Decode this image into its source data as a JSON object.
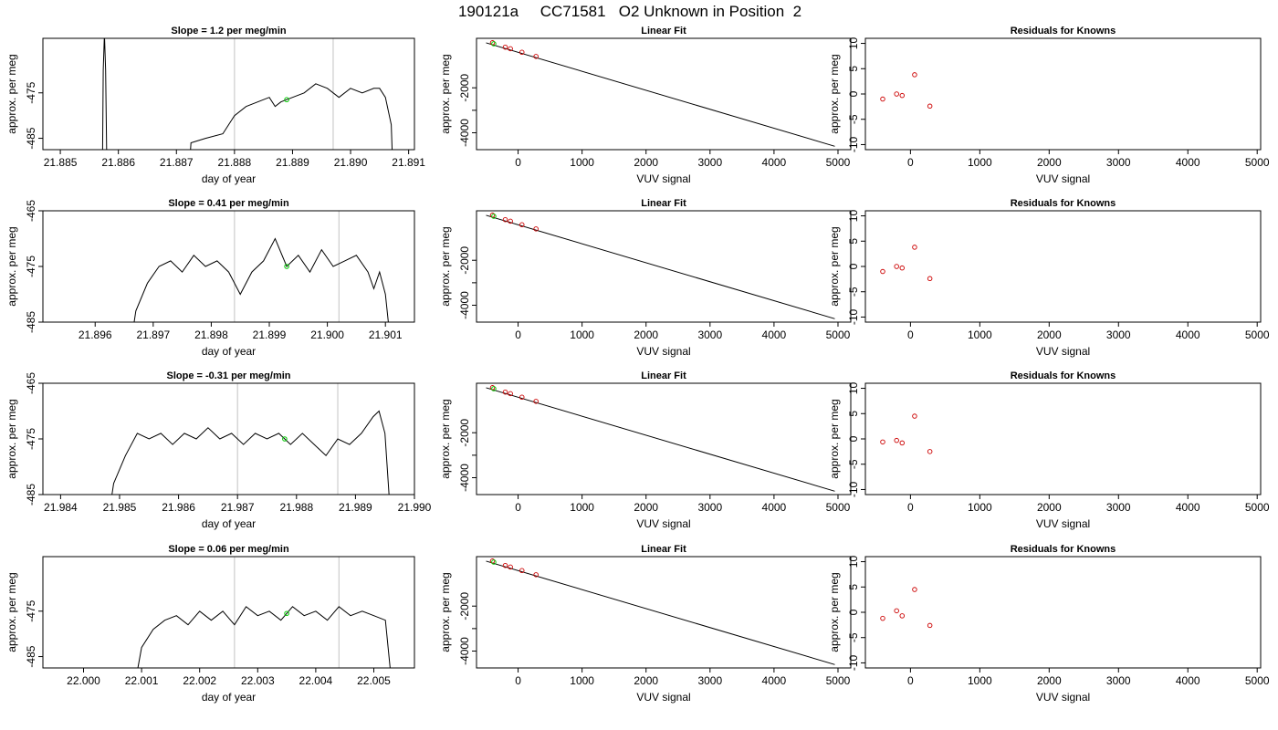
{
  "figure": {
    "title": "190121a     CC71581   O2 Unknown in Position  2"
  },
  "chart_data": [
    {
      "type": "line",
      "title": "Slope =  1.2  per meg/min",
      "xlabel": "day of year",
      "ylabel": "approx. per meg",
      "xlim": [
        21.8847,
        21.8911
      ],
      "ylim": [
        -487.5,
        -463
      ],
      "xticks": [
        21.885,
        21.886,
        21.887,
        21.888,
        21.889,
        21.89,
        21.891
      ],
      "xtick_labels": [
        "21.885",
        "21.886",
        "21.887",
        "21.888",
        "21.889",
        "21.890",
        "21.891"
      ],
      "yticks": [
        -485,
        -475
      ],
      "ytick_labels": [
        "-485",
        "-475"
      ],
      "vlines": [
        21.888,
        21.8897
      ],
      "marker": {
        "x": 21.8889,
        "y": -476.5,
        "color": "#00cc00"
      },
      "series": [
        {
          "color": "#000000",
          "points": [
            [
              21.88572,
              -500
            ],
            [
              21.88574,
              -470
            ],
            [
              21.88576,
              -462
            ],
            [
              21.88578,
              -470
            ],
            [
              21.88581,
              -500
            ],
            [
              21.88718,
              -500
            ],
            [
              21.88725,
              -486
            ],
            [
              21.8875,
              -485
            ],
            [
              21.8878,
              -484
            ],
            [
              21.8879,
              -482
            ],
            [
              21.888,
              -480
            ],
            [
              21.8882,
              -478
            ],
            [
              21.8884,
              -477
            ],
            [
              21.8886,
              -476
            ],
            [
              21.8887,
              -478
            ],
            [
              21.8888,
              -477
            ],
            [
              21.889,
              -476
            ],
            [
              21.8892,
              -475
            ],
            [
              21.8894,
              -473
            ],
            [
              21.8896,
              -474
            ],
            [
              21.8898,
              -476
            ],
            [
              21.89,
              -474
            ],
            [
              21.8902,
              -475
            ],
            [
              21.8904,
              -474
            ],
            [
              21.8905,
              -474
            ],
            [
              21.8906,
              -476
            ],
            [
              21.8907,
              -482
            ],
            [
              21.89075,
              -500
            ]
          ]
        }
      ]
    },
    {
      "type": "line",
      "title": "Linear Fit",
      "xlabel": "VUV signal",
      "ylabel": "approx. per meg",
      "xlim": [
        -650,
        5200
      ],
      "ylim": [
        -4750,
        200
      ],
      "xticks": [
        0,
        1000,
        2000,
        3000,
        4000,
        5000
      ],
      "xtick_labels": [
        "0",
        "1000",
        "2000",
        "3000",
        "4000",
        "5000"
      ],
      "yticks": [
        -4000,
        -3000,
        -2000
      ],
      "ytick_labels": [
        "-4000",
        "",
        "-2000"
      ],
      "fit_line": [
        [
          -500,
          0
        ],
        [
          4950,
          -4600
        ]
      ],
      "knowns": [
        [
          -400,
          5
        ],
        [
          -200,
          -195
        ],
        [
          -120,
          -262
        ],
        [
          60,
          -420
        ],
        [
          280,
          -605
        ]
      ],
      "unknown": {
        "x": -380,
        "y": -42
      }
    },
    {
      "type": "scatter",
      "title": "Residuals for Knowns",
      "xlabel": "VUV signal",
      "ylabel": "approx. per meg",
      "xlim": [
        -650,
        5050
      ],
      "ylim": [
        -11,
        11
      ],
      "xticks": [
        0,
        1000,
        2000,
        3000,
        4000,
        5000
      ],
      "xtick_labels": [
        "0",
        "1000",
        "2000",
        "3000",
        "4000",
        "5000"
      ],
      "yticks": [
        -10,
        -5,
        0,
        5,
        10
      ],
      "ytick_labels": [
        "-10",
        "-5",
        "0",
        "5",
        "10"
      ],
      "points": [
        [
          -400,
          -1
        ],
        [
          -200,
          0
        ],
        [
          -120,
          -0.3
        ],
        [
          60,
          3.8
        ],
        [
          280,
          -2.4
        ]
      ]
    },
    {
      "type": "line",
      "title": "Slope =  0.41  per meg/min",
      "xlabel": "day of year",
      "ylabel": "approx. per meg",
      "xlim": [
        21.8951,
        21.9015
      ],
      "ylim": [
        -485,
        -465
      ],
      "xticks": [
        21.896,
        21.897,
        21.898,
        21.899,
        21.9,
        21.901
      ],
      "xtick_labels": [
        "21.896",
        "21.897",
        "21.898",
        "21.899",
        "21.900",
        "21.901"
      ],
      "yticks": [
        -485,
        -475,
        -465
      ],
      "ytick_labels": [
        "-485",
        "-475",
        "-465"
      ],
      "vlines": [
        21.8984,
        21.9002
      ],
      "marker": {
        "x": 21.8993,
        "y": -475,
        "color": "#00cc00"
      },
      "series": [
        {
          "color": "#000000",
          "points": [
            [
              21.8966,
              -490
            ],
            [
              21.8967,
              -483
            ],
            [
              21.8969,
              -478
            ],
            [
              21.8971,
              -475
            ],
            [
              21.8973,
              -474
            ],
            [
              21.8975,
              -476
            ],
            [
              21.8977,
              -473
            ],
            [
              21.8979,
              -475
            ],
            [
              21.8981,
              -474
            ],
            [
              21.8983,
              -476
            ],
            [
              21.8985,
              -480
            ],
            [
              21.8987,
              -476
            ],
            [
              21.8989,
              -474
            ],
            [
              21.8991,
              -470
            ],
            [
              21.8993,
              -475
            ],
            [
              21.8995,
              -473
            ],
            [
              21.8997,
              -476
            ],
            [
              21.8999,
              -472
            ],
            [
              21.9001,
              -475
            ],
            [
              21.9003,
              -474
            ],
            [
              21.9005,
              -473
            ],
            [
              21.9007,
              -476
            ],
            [
              21.9008,
              -479
            ],
            [
              21.9009,
              -476
            ],
            [
              21.901,
              -480
            ],
            [
              21.9011,
              -490
            ]
          ]
        }
      ]
    },
    {
      "type": "line",
      "title": "Linear Fit",
      "xlabel": "VUV signal",
      "ylabel": "approx. per meg",
      "xlim": [
        -650,
        5200
      ],
      "ylim": [
        -4750,
        200
      ],
      "xticks": [
        0,
        1000,
        2000,
        3000,
        4000,
        5000
      ],
      "xtick_labels": [
        "0",
        "1000",
        "2000",
        "3000",
        "4000",
        "5000"
      ],
      "yticks": [
        -4000,
        -3000,
        -2000
      ],
      "ytick_labels": [
        "-4000",
        "",
        "-2000"
      ],
      "fit_line": [
        [
          -500,
          0
        ],
        [
          4950,
          -4600
        ]
      ],
      "knowns": [
        [
          -400,
          5
        ],
        [
          -200,
          -195
        ],
        [
          -120,
          -262
        ],
        [
          60,
          -420
        ],
        [
          280,
          -605
        ]
      ],
      "unknown": {
        "x": -380,
        "y": -42
      }
    },
    {
      "type": "scatter",
      "title": "Residuals for Knowns",
      "xlabel": "VUV signal",
      "ylabel": "approx. per meg",
      "xlim": [
        -650,
        5050
      ],
      "ylim": [
        -11,
        11
      ],
      "xticks": [
        0,
        1000,
        2000,
        3000,
        4000,
        5000
      ],
      "xtick_labels": [
        "0",
        "1000",
        "2000",
        "3000",
        "4000",
        "5000"
      ],
      "yticks": [
        -10,
        -5,
        0,
        5,
        10
      ],
      "ytick_labels": [
        "-10",
        "-5",
        "0",
        "5",
        "10"
      ],
      "points": [
        [
          -400,
          -1
        ],
        [
          -200,
          0
        ],
        [
          -120,
          -0.3
        ],
        [
          60,
          3.8
        ],
        [
          280,
          -2.4
        ]
      ]
    },
    {
      "type": "line",
      "title": "Slope =  -0.31  per meg/min",
      "xlabel": "day of year",
      "ylabel": "approx. per meg",
      "xlim": [
        21.9837,
        21.99
      ],
      "ylim": [
        -485,
        -465
      ],
      "xticks": [
        21.984,
        21.985,
        21.986,
        21.987,
        21.988,
        21.989,
        21.99
      ],
      "xtick_labels": [
        "21.984",
        "21.985",
        "21.986",
        "21.987",
        "21.988",
        "21.989",
        "21.990"
      ],
      "yticks": [
        -485,
        -475,
        -465
      ],
      "ytick_labels": [
        "-485",
        "-475",
        "-465"
      ],
      "vlines": [
        21.987,
        21.9887
      ],
      "marker": {
        "x": 21.9878,
        "y": -475,
        "color": "#00cc00"
      },
      "series": [
        {
          "color": "#000000",
          "points": [
            [
              21.9848,
              -490
            ],
            [
              21.9849,
              -483
            ],
            [
              21.9851,
              -478
            ],
            [
              21.9853,
              -474
            ],
            [
              21.9855,
              -475
            ],
            [
              21.9857,
              -474
            ],
            [
              21.9859,
              -476
            ],
            [
              21.9861,
              -474
            ],
            [
              21.9863,
              -475
            ],
            [
              21.9865,
              -473
            ],
            [
              21.9867,
              -475
            ],
            [
              21.9869,
              -474
            ],
            [
              21.9871,
              -476
            ],
            [
              21.9873,
              -474
            ],
            [
              21.9875,
              -475
            ],
            [
              21.9877,
              -474
            ],
            [
              21.9879,
              -476
            ],
            [
              21.9881,
              -474
            ],
            [
              21.9883,
              -476
            ],
            [
              21.9885,
              -478
            ],
            [
              21.9887,
              -475
            ],
            [
              21.9889,
              -476
            ],
            [
              21.9891,
              -474
            ],
            [
              21.9893,
              -471
            ],
            [
              21.9894,
              -470
            ],
            [
              21.9895,
              -474
            ],
            [
              21.9896,
              -490
            ]
          ]
        }
      ]
    },
    {
      "type": "line",
      "title": "Linear Fit",
      "xlabel": "VUV signal",
      "ylabel": "approx. per meg",
      "xlim": [
        -650,
        5200
      ],
      "ylim": [
        -4750,
        200
      ],
      "xticks": [
        0,
        1000,
        2000,
        3000,
        4000,
        5000
      ],
      "xtick_labels": [
        "0",
        "1000",
        "2000",
        "3000",
        "4000",
        "5000"
      ],
      "yticks": [
        -4000,
        -3000,
        -2000
      ],
      "ytick_labels": [
        "-4000",
        "",
        "-2000"
      ],
      "fit_line": [
        [
          -500,
          0
        ],
        [
          4950,
          -4600
        ]
      ],
      "knowns": [
        [
          -400,
          5
        ],
        [
          -200,
          -195
        ],
        [
          -120,
          -262
        ],
        [
          60,
          -420
        ],
        [
          280,
          -605
        ]
      ],
      "unknown": {
        "x": -380,
        "y": -42
      }
    },
    {
      "type": "scatter",
      "title": "Residuals for Knowns",
      "xlabel": "VUV signal",
      "ylabel": "approx. per meg",
      "xlim": [
        -650,
        5050
      ],
      "ylim": [
        -11,
        11
      ],
      "xticks": [
        0,
        1000,
        2000,
        3000,
        4000,
        5000
      ],
      "xtick_labels": [
        "0",
        "1000",
        "2000",
        "3000",
        "4000",
        "5000"
      ],
      "yticks": [
        -10,
        -5,
        0,
        5,
        10
      ],
      "ytick_labels": [
        "-10",
        "-5",
        "0",
        "5",
        "10"
      ],
      "points": [
        [
          -400,
          -0.6
        ],
        [
          -200,
          -0.3
        ],
        [
          -120,
          -0.8
        ],
        [
          60,
          4.5
        ],
        [
          280,
          -2.5
        ]
      ]
    },
    {
      "type": "line",
      "title": "Slope =  0.06  per meg/min",
      "xlabel": "day of year",
      "ylabel": "approx. per meg",
      "xlim": [
        21.9993,
        22.0057
      ],
      "ylim": [
        -487.5,
        -463
      ],
      "xticks": [
        22,
        22.001,
        22.002,
        22.003,
        22.004,
        22.005
      ],
      "xtick_labels": [
        "22.000",
        "22.001",
        "22.002",
        "22.003",
        "22.004",
        "22.005"
      ],
      "yticks": [
        -485,
        -475
      ],
      "ytick_labels": [
        "-485",
        "-475"
      ],
      "vlines": [
        22.0026,
        22.0044
      ],
      "marker": {
        "x": 22.0035,
        "y": -475.5,
        "color": "#00cc00"
      },
      "series": [
        {
          "color": "#000000",
          "points": [
            [
              22.0009,
              -490
            ],
            [
              22.001,
              -483
            ],
            [
              22.0012,
              -479
            ],
            [
              22.0014,
              -477
            ],
            [
              22.0016,
              -476
            ],
            [
              22.0018,
              -478
            ],
            [
              22.002,
              -475
            ],
            [
              22.0022,
              -477
            ],
            [
              22.0024,
              -475
            ],
            [
              22.0026,
              -478
            ],
            [
              22.0028,
              -474
            ],
            [
              22.003,
              -476
            ],
            [
              22.0032,
              -475
            ],
            [
              22.0034,
              -477
            ],
            [
              22.0036,
              -474
            ],
            [
              22.0038,
              -476
            ],
            [
              22.004,
              -475
            ],
            [
              22.0042,
              -477
            ],
            [
              22.0044,
              -474
            ],
            [
              22.0046,
              -476
            ],
            [
              22.0048,
              -475
            ],
            [
              22.005,
              -476
            ],
            [
              22.0052,
              -477
            ],
            [
              22.0053,
              -490
            ]
          ]
        }
      ]
    },
    {
      "type": "line",
      "title": "Linear Fit",
      "xlabel": "VUV signal",
      "ylabel": "approx. per meg",
      "xlim": [
        -650,
        5200
      ],
      "ylim": [
        -4750,
        200
      ],
      "xticks": [
        0,
        1000,
        2000,
        3000,
        4000,
        5000
      ],
      "xtick_labels": [
        "0",
        "1000",
        "2000",
        "3000",
        "4000",
        "5000"
      ],
      "yticks": [
        -4000,
        -3000,
        -2000
      ],
      "ytick_labels": [
        "-4000",
        "",
        "-2000"
      ],
      "fit_line": [
        [
          -500,
          0
        ],
        [
          4950,
          -4600
        ]
      ],
      "knowns": [
        [
          -400,
          5
        ],
        [
          -200,
          -195
        ],
        [
          -120,
          -262
        ],
        [
          60,
          -420
        ],
        [
          280,
          -605
        ]
      ],
      "unknown": {
        "x": -380,
        "y": -42
      }
    },
    {
      "type": "scatter",
      "title": "Residuals for Knowns",
      "xlabel": "VUV signal",
      "ylabel": "approx. per meg",
      "xlim": [
        -650,
        5050
      ],
      "ylim": [
        -11,
        11
      ],
      "xticks": [
        0,
        1000,
        2000,
        3000,
        4000,
        5000
      ],
      "xtick_labels": [
        "0",
        "1000",
        "2000",
        "3000",
        "4000",
        "5000"
      ],
      "yticks": [
        -10,
        -5,
        0,
        5,
        10
      ],
      "ytick_labels": [
        "-10",
        "-5",
        "0",
        "5",
        "10"
      ],
      "points": [
        [
          -400,
          -1.2
        ],
        [
          -200,
          0.3
        ],
        [
          -120,
          -0.7
        ],
        [
          60,
          4.5
        ],
        [
          280,
          -2.6
        ]
      ]
    }
  ],
  "colors": {
    "axis": "#000000",
    "trace": "#000000",
    "vline": "#cccccc",
    "known_marker": "#cc0000",
    "unknown_marker": "#00cc00"
  }
}
